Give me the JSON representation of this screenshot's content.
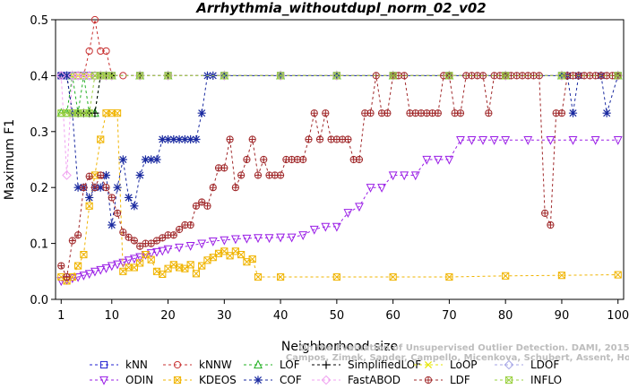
{
  "watermark": {
    "line1": "Campos, Zimek, Sander, Campello, Micenkova, Schubert, Assent, Houle",
    "line2": "On the Evaluation of Unsupervised Outlier Detection. DAMI, 2015."
  },
  "chart_data": {
    "type": "line",
    "title": "Arrhythmia_withoutdupl_norm_02_v02",
    "xlabel": "Neighborhood size",
    "ylabel": "Maximum F1",
    "xlim": [
      0,
      101
    ],
    "ylim": [
      0,
      0.5
    ],
    "xticks": [
      1,
      10,
      20,
      30,
      40,
      50,
      60,
      70,
      80,
      90,
      100
    ],
    "yticks": [
      0.0,
      0.1,
      0.2,
      0.3,
      0.4,
      0.5
    ],
    "grid": false,
    "legend_position": "bottom",
    "series": [
      {
        "name": "kNN",
        "color": "#1f1fd0",
        "marker": "square",
        "x": [
          1,
          2,
          3,
          4,
          5,
          6,
          7,
          8,
          9,
          10,
          15,
          20,
          30,
          40,
          50,
          60,
          70,
          80,
          90,
          100
        ],
        "y": [
          0.4,
          0.4,
          0.4,
          0.4,
          0.4,
          0.4,
          0.4,
          0.4,
          0.4,
          0.4,
          0.4,
          0.4,
          0.4,
          0.4,
          0.4,
          0.4,
          0.4,
          0.4,
          0.4,
          0.4
        ]
      },
      {
        "name": "kNNW",
        "color": "#c83232",
        "marker": "circle",
        "x": [
          1,
          3,
          4,
          5,
          6,
          7,
          8,
          9,
          10,
          12,
          15,
          20,
          30,
          40,
          50,
          60,
          70,
          80,
          90,
          100
        ],
        "y": [
          0.4,
          0.4,
          0.4,
          0.4,
          0.444,
          0.5,
          0.444,
          0.444,
          0.4,
          0.4,
          0.4,
          0.4,
          0.4,
          0.4,
          0.4,
          0.4,
          0.4,
          0.4,
          0.4,
          0.4
        ]
      },
      {
        "name": "LOF",
        "color": "#22b022",
        "marker": "triangle-up",
        "x": [
          1,
          2,
          3,
          4,
          5,
          6,
          7,
          8,
          9,
          10,
          15,
          20,
          30,
          40,
          50,
          60,
          70,
          80,
          90,
          100
        ],
        "y": [
          0.333,
          0.333,
          0.4,
          0.333,
          0.4,
          0.333,
          0.333,
          0.4,
          0.4,
          0.4,
          0.4,
          0.4,
          0.4,
          0.4,
          0.4,
          0.4,
          0.4,
          0.4,
          0.4,
          0.4
        ]
      },
      {
        "name": "SimplifiedLOF",
        "color": "#000000",
        "marker": "plus",
        "x": [
          1,
          2,
          3,
          4,
          5,
          6,
          7,
          8,
          9,
          10,
          15,
          20,
          30,
          40,
          50,
          60,
          70,
          80,
          90,
          100
        ],
        "y": [
          0.4,
          0.4,
          0.333,
          0.333,
          0.333,
          0.333,
          0.333,
          0.4,
          0.4,
          0.4,
          0.4,
          0.4,
          0.4,
          0.4,
          0.4,
          0.4,
          0.4,
          0.4,
          0.4,
          0.4
        ]
      },
      {
        "name": "LoOP",
        "color": "#e6e600",
        "marker": "cross",
        "x": [
          1,
          2,
          3,
          4,
          5,
          6,
          7,
          8,
          9,
          10,
          15,
          20,
          30,
          40,
          50,
          60,
          70,
          80,
          90,
          100
        ],
        "y": [
          0.4,
          0.4,
          0.4,
          0.4,
          0.4,
          0.4,
          0.4,
          0.4,
          0.4,
          0.4,
          0.4,
          0.4,
          0.4,
          0.4,
          0.4,
          0.4,
          0.4,
          0.4,
          0.4,
          0.4
        ]
      },
      {
        "name": "LDOF",
        "color": "#a6a6e6",
        "marker": "diamond",
        "x": [
          1,
          2,
          3,
          4,
          5,
          6,
          7,
          8,
          9,
          10,
          15,
          20,
          30,
          40,
          50,
          60,
          70,
          80,
          90,
          100
        ],
        "y": [
          0.4,
          0.4,
          0.4,
          0.4,
          0.4,
          0.4,
          0.4,
          0.4,
          0.4,
          0.4,
          0.4,
          0.4,
          0.4,
          0.4,
          0.4,
          0.4,
          0.4,
          0.4,
          0.4,
          0.4
        ]
      },
      {
        "name": "ODIN",
        "color": "#9a1ee6",
        "marker": "triangle-down",
        "x": [
          1,
          2,
          3,
          4,
          5,
          6,
          7,
          8,
          9,
          10,
          11,
          12,
          13,
          14,
          15,
          16,
          17,
          18,
          19,
          20,
          22,
          24,
          26,
          28,
          30,
          32,
          34,
          36,
          38,
          40,
          42,
          44,
          46,
          48,
          50,
          52,
          54,
          56,
          58,
          60,
          62,
          64,
          66,
          68,
          70,
          72,
          74,
          76,
          78,
          80,
          84,
          88,
          92,
          96,
          100
        ],
        "y": [
          0.033,
          0.035,
          0.038,
          0.04,
          0.043,
          0.046,
          0.05,
          0.053,
          0.056,
          0.06,
          0.063,
          0.066,
          0.07,
          0.073,
          0.076,
          0.08,
          0.083,
          0.085,
          0.087,
          0.09,
          0.093,
          0.096,
          0.1,
          0.104,
          0.106,
          0.108,
          0.109,
          0.11,
          0.11,
          0.111,
          0.111,
          0.115,
          0.125,
          0.13,
          0.13,
          0.155,
          0.166,
          0.2,
          0.2,
          0.222,
          0.222,
          0.222,
          0.25,
          0.25,
          0.25,
          0.285,
          0.285,
          0.285,
          0.285,
          0.285,
          0.285,
          0.285,
          0.285,
          0.285,
          0.285
        ]
      },
      {
        "name": "KDEOS",
        "color": "#f0b400",
        "marker": "square-x",
        "x": [
          1,
          2,
          3,
          4,
          5,
          6,
          7,
          8,
          9,
          10,
          11,
          12,
          13,
          14,
          15,
          16,
          17,
          18,
          19,
          20,
          21,
          22,
          23,
          24,
          25,
          26,
          27,
          28,
          29,
          30,
          31,
          32,
          33,
          34,
          35,
          36,
          40,
          50,
          60,
          70,
          80,
          90,
          100
        ],
        "y": [
          0.04,
          0.033,
          0.04,
          0.06,
          0.08,
          0.167,
          0.222,
          0.286,
          0.333,
          0.333,
          0.333,
          0.05,
          0.057,
          0.057,
          0.065,
          0.08,
          0.071,
          0.05,
          0.045,
          0.055,
          0.062,
          0.057,
          0.055,
          0.062,
          0.046,
          0.06,
          0.07,
          0.075,
          0.082,
          0.086,
          0.078,
          0.086,
          0.08,
          0.067,
          0.072,
          0.04,
          0.04,
          0.04,
          0.04,
          0.04,
          0.042,
          0.043,
          0.044
        ]
      },
      {
        "name": "COF",
        "color": "#1a2aa0",
        "marker": "star",
        "x": [
          1,
          2,
          3,
          4,
          5,
          6,
          7,
          8,
          9,
          10,
          11,
          12,
          13,
          14,
          15,
          16,
          17,
          18,
          19,
          20,
          21,
          22,
          23,
          24,
          25,
          26,
          27,
          28,
          30,
          40,
          50,
          60,
          70,
          80,
          90,
          91,
          92,
          93,
          97,
          98,
          100
        ],
        "y": [
          0.4,
          0.4,
          0.333,
          0.2,
          0.2,
          0.182,
          0.2,
          0.2,
          0.222,
          0.133,
          0.2,
          0.25,
          0.182,
          0.167,
          0.222,
          0.25,
          0.25,
          0.25,
          0.286,
          0.286,
          0.286,
          0.286,
          0.286,
          0.286,
          0.286,
          0.333,
          0.4,
          0.4,
          0.4,
          0.4,
          0.4,
          0.4,
          0.4,
          0.4,
          0.4,
          0.4,
          0.333,
          0.4,
          0.4,
          0.333,
          0.4
        ]
      },
      {
        "name": "FastABOD",
        "color": "#f0a0f0",
        "marker": "diamond",
        "x": [
          1,
          2,
          3,
          4,
          5,
          6,
          7,
          8,
          9,
          10,
          15,
          20,
          30,
          40,
          50,
          60,
          70,
          80,
          90,
          100
        ],
        "y": [
          0.4,
          0.222,
          0.4,
          0.4,
          0.4,
          0.4,
          0.4,
          0.4,
          0.4,
          0.4,
          0.4,
          0.4,
          0.4,
          0.4,
          0.4,
          0.4,
          0.4,
          0.4,
          0.4,
          0.4
        ]
      },
      {
        "name": "LDF",
        "color": "#a0282a",
        "marker": "circle-plus",
        "x": [
          1,
          2,
          3,
          4,
          5,
          6,
          7,
          8,
          9,
          10,
          11,
          12,
          13,
          14,
          15,
          16,
          17,
          18,
          19,
          20,
          21,
          22,
          23,
          24,
          25,
          26,
          27,
          28,
          29,
          30,
          31,
          32,
          33,
          34,
          35,
          36,
          37,
          38,
          39,
          40,
          41,
          42,
          43,
          44,
          45,
          46,
          47,
          48,
          49,
          50,
          51,
          52,
          53,
          54,
          55,
          56,
          57,
          58,
          59,
          60,
          61,
          62,
          63,
          64,
          65,
          66,
          67,
          68,
          69,
          70,
          71,
          72,
          73,
          74,
          75,
          76,
          77,
          78,
          79,
          80,
          81,
          82,
          83,
          84,
          85,
          86,
          87,
          88,
          89,
          90,
          91,
          92,
          93,
          94,
          95,
          96,
          97,
          98,
          99,
          100
        ],
        "y": [
          0.06,
          0.04,
          0.105,
          0.115,
          0.2,
          0.22,
          0.2,
          0.222,
          0.2,
          0.182,
          0.154,
          0.12,
          0.111,
          0.105,
          0.095,
          0.1,
          0.1,
          0.105,
          0.11,
          0.115,
          0.115,
          0.125,
          0.133,
          0.133,
          0.167,
          0.174,
          0.167,
          0.2,
          0.235,
          0.235,
          0.286,
          0.2,
          0.222,
          0.25,
          0.286,
          0.222,
          0.25,
          0.222,
          0.222,
          0.222,
          0.25,
          0.25,
          0.25,
          0.25,
          0.286,
          0.333,
          0.286,
          0.333,
          0.286,
          0.286,
          0.286,
          0.286,
          0.25,
          0.25,
          0.333,
          0.333,
          0.4,
          0.333,
          0.333,
          0.4,
          0.4,
          0.4,
          0.333,
          0.333,
          0.333,
          0.333,
          0.333,
          0.333,
          0.4,
          0.4,
          0.333,
          0.333,
          0.4,
          0.4,
          0.4,
          0.4,
          0.333,
          0.4,
          0.4,
          0.4,
          0.4,
          0.4,
          0.4,
          0.4,
          0.4,
          0.4,
          0.154,
          0.133,
          0.333,
          0.333,
          0.4,
          0.4,
          0.4,
          0.4,
          0.4,
          0.4,
          0.4,
          0.4,
          0.4,
          0.4
        ]
      },
      {
        "name": "INFLO",
        "color": "#9ad040",
        "marker": "square-x",
        "x": [
          1,
          2,
          3,
          4,
          5,
          6,
          7,
          8,
          9,
          10,
          15,
          20,
          30,
          40,
          50,
          60,
          70,
          80,
          90,
          100
        ],
        "y": [
          0.333,
          0.333,
          0.333,
          0.333,
          0.333,
          0.333,
          0.4,
          0.4,
          0.4,
          0.4,
          0.4,
          0.4,
          0.4,
          0.4,
          0.4,
          0.4,
          0.4,
          0.4,
          0.4,
          0.4
        ]
      }
    ]
  }
}
